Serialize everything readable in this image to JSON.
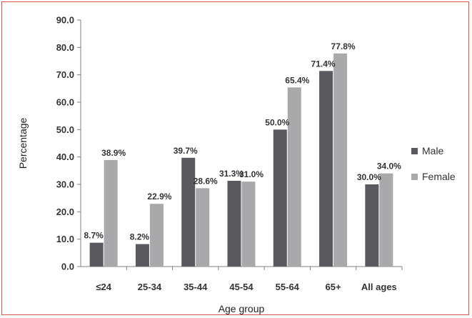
{
  "chart_data": {
    "type": "bar",
    "title": "",
    "xlabel": "Age group",
    "ylabel": "Percentage",
    "ylim": [
      0,
      90
    ],
    "yticks": [
      "0.0",
      "10.0",
      "20.0",
      "30.0",
      "40.0",
      "50.0",
      "60.0",
      "70.0",
      "80.0",
      "90.0"
    ],
    "categories": [
      "≤24",
      "25-34",
      "35-44",
      "45-54",
      "55-64",
      "65+",
      "All ages"
    ],
    "series": [
      {
        "name": "Male",
        "color": "#5a5a5e",
        "values": [
          8.7,
          8.2,
          39.7,
          31.3,
          50.0,
          71.4,
          30.0
        ],
        "labels": [
          "8.7%",
          "8.2%",
          "39.7%",
          "31.3%",
          "50.0%",
          "71.4%",
          "30.0%"
        ]
      },
      {
        "name": "Female",
        "color": "#a9a9ab",
        "values": [
          38.9,
          22.9,
          28.6,
          31.0,
          65.4,
          77.8,
          34.0
        ],
        "labels": [
          "38.9%",
          "22.9%",
          "28.6%",
          "31.0%",
          "65.4%",
          "77.8%",
          "34.0%"
        ]
      }
    ],
    "legend": "right",
    "grid": false
  }
}
